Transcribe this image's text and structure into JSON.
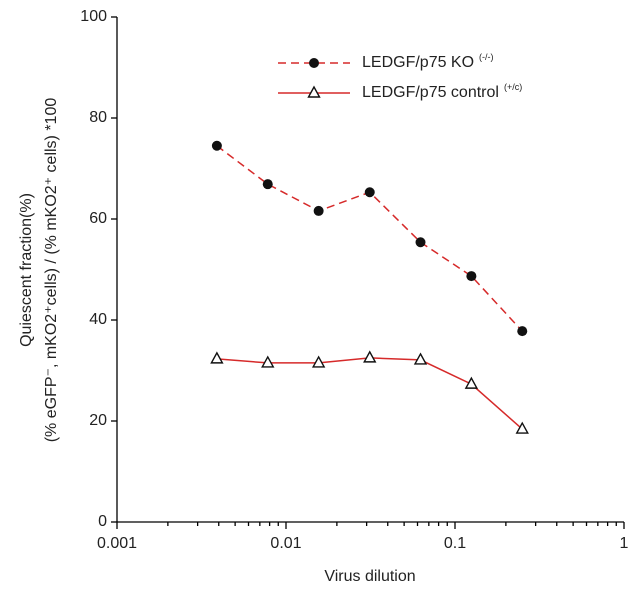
{
  "chart_data": {
    "type": "line",
    "x_label": "Virus dilution",
    "y_label": [
      "Quiescent fraction(%)",
      "(% eGFP⁻, mKO2⁺cells) / (% mKO2⁺ cells) *100"
    ],
    "x": [
      0.0039,
      0.0078,
      0.0156,
      0.0313,
      0.0625,
      0.125,
      0.25
    ],
    "x_log": true,
    "xlim": [
      0.001,
      1
    ],
    "xticks": [
      0.001,
      0.01,
      0.1,
      1
    ],
    "xminorticks": [
      0.002,
      0.003,
      0.004,
      0.005,
      0.006,
      0.007,
      0.008,
      0.009,
      0.02,
      0.03,
      0.04,
      0.05,
      0.06,
      0.07,
      0.08,
      0.09,
      0.2,
      0.3,
      0.4,
      0.5,
      0.6,
      0.7,
      0.8,
      0.9
    ],
    "ylim": [
      0,
      100
    ],
    "yticks": [
      0,
      20,
      40,
      60,
      80,
      100
    ],
    "grid": false,
    "legend": "upper right",
    "series": [
      {
        "name": "LEDGF/p75 KO",
        "superscript": "(-/-)",
        "color": "#d62a2a",
        "dash": true,
        "marker": "circle",
        "values": [
          74.5,
          66.9,
          61.6,
          65.3,
          55.4,
          48.7,
          37.8
        ]
      },
      {
        "name": "LEDGF/p75 control",
        "superscript": "(+/c)",
        "color": "#d62a2a",
        "dash": false,
        "marker": "triangle",
        "values": [
          32.3,
          31.5,
          31.5,
          32.5,
          32.1,
          27.3,
          18.4
        ]
      }
    ]
  }
}
